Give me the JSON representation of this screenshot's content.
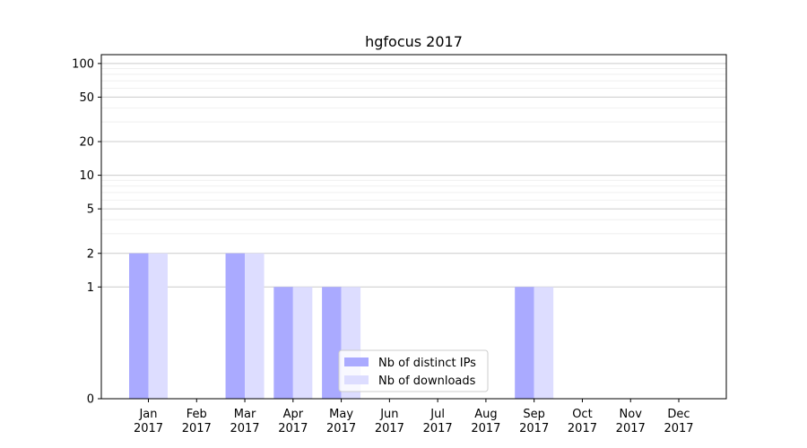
{
  "chart_data": {
    "type": "bar",
    "title": "hgfocus 2017",
    "categories": [
      "Jan\n2017",
      "Feb\n2017",
      "Mar\n2017",
      "Apr\n2017",
      "May\n2017",
      "Jun\n2017",
      "Jul\n2017",
      "Aug\n2017",
      "Sep\n2017",
      "Oct\n2017",
      "Nov\n2017",
      "Dec\n2017"
    ],
    "series": [
      {
        "name": "Nb of distinct IPs",
        "values": [
          2,
          0,
          2,
          1,
          1,
          0,
          0,
          0,
          1,
          0,
          0,
          0
        ],
        "color": "#aaaaff"
      },
      {
        "name": "Nb of downloads",
        "values": [
          2,
          0,
          2,
          1,
          1,
          0,
          0,
          0,
          1,
          0,
          0,
          0
        ],
        "color": "#ddddff"
      }
    ],
    "yscale": "symlog",
    "ylim": [
      0,
      120
    ],
    "yticks": [
      0,
      1,
      2,
      5,
      10,
      20,
      50,
      100
    ],
    "ytick_labels": [
      "0",
      "1",
      "2",
      "5",
      "10",
      "20",
      "50",
      "100"
    ],
    "grid": true,
    "legend_position": "bottom-center",
    "colors": {
      "grid_major": "#cccccc",
      "grid_minor": "#eeeeee",
      "axis": "#000000"
    }
  }
}
